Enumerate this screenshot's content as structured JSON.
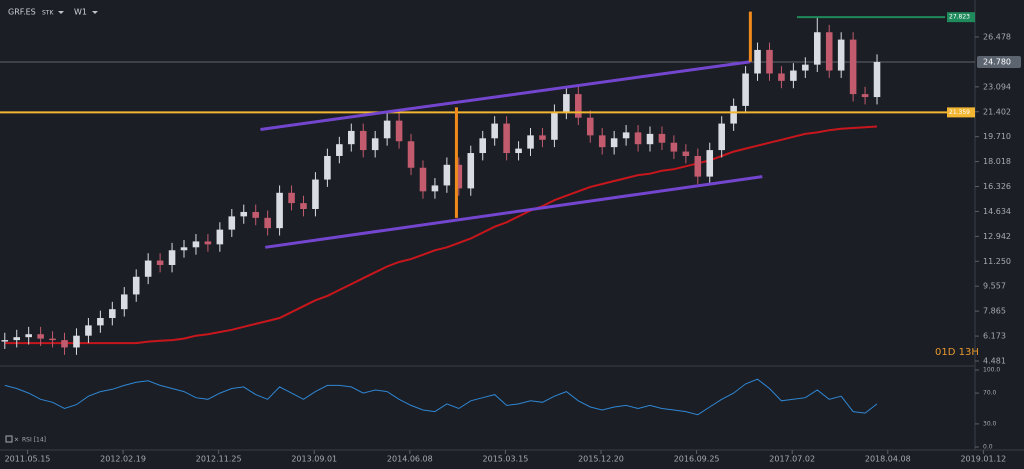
{
  "header": {
    "symbol": "GRF.ES",
    "exchange": "STK",
    "timeframe": "W1",
    "countdown": "01D 13H"
  },
  "chart_data": [
    {
      "type": "candlestick",
      "open": [
        5.8,
        5.9,
        6.1,
        6.3,
        6.0,
        5.9,
        5.4,
        6.2,
        6.9,
        7.4,
        8.0,
        9.0,
        10.2,
        11.3,
        11.0,
        12.0,
        12.2,
        12.6,
        12.4,
        13.4,
        14.3,
        14.6,
        14.2,
        13.5,
        15.9,
        15.2,
        14.8,
        16.8,
        18.4,
        19.2,
        20.1,
        18.8,
        19.6,
        20.8,
        19.4,
        17.6,
        16.0,
        16.4,
        17.8,
        16.2,
        18.6,
        19.6,
        20.6,
        18.6,
        18.9,
        19.8,
        19.5,
        21.4,
        22.6,
        21.0,
        19.8,
        19.0,
        19.6,
        20.0,
        19.2,
        19.9,
        19.3,
        18.7,
        18.4,
        17.0,
        18.8,
        20.6,
        21.8,
        24.0,
        25.6,
        24.0,
        23.5,
        24.2,
        24.6,
        26.8,
        24.2,
        26.3,
        22.6,
        22.4
      ],
      "high": [
        6.4,
        6.6,
        6.8,
        6.8,
        6.5,
        6.4,
        6.7,
        7.4,
        7.9,
        8.5,
        9.5,
        10.7,
        11.8,
        11.8,
        12.5,
        12.7,
        13.1,
        13.1,
        13.9,
        14.8,
        15.1,
        15.1,
        14.7,
        16.4,
        16.4,
        15.7,
        17.3,
        18.9,
        19.7,
        20.6,
        20.6,
        20.1,
        21.3,
        21.3,
        19.9,
        18.1,
        16.9,
        18.3,
        18.3,
        19.1,
        20.1,
        21.1,
        21.1,
        19.4,
        20.3,
        20.3,
        21.9,
        23.1,
        23.1,
        21.5,
        20.3,
        20.1,
        20.5,
        20.5,
        20.4,
        20.4,
        19.8,
        19.2,
        18.9,
        19.3,
        21.1,
        22.3,
        24.5,
        26.1,
        26.1,
        24.5,
        24.7,
        25.1,
        27.8,
        27.3,
        26.8,
        26.8,
        23.1,
        25.3
      ],
      "low": [
        5.3,
        5.4,
        5.6,
        5.5,
        5.4,
        4.9,
        4.9,
        5.7,
        6.4,
        6.9,
        7.5,
        8.5,
        9.7,
        10.5,
        10.5,
        11.5,
        11.7,
        11.9,
        11.9,
        12.9,
        13.8,
        13.7,
        13.0,
        13.0,
        14.7,
        14.3,
        14.3,
        16.3,
        17.9,
        18.7,
        18.3,
        18.3,
        19.1,
        18.9,
        17.1,
        15.5,
        15.5,
        15.9,
        15.7,
        15.7,
        18.1,
        19.1,
        18.1,
        18.1,
        18.4,
        19.0,
        19.0,
        20.9,
        20.5,
        19.3,
        18.5,
        18.5,
        19.1,
        18.7,
        18.7,
        18.8,
        18.2,
        17.9,
        16.5,
        16.5,
        18.3,
        20.1,
        21.3,
        23.5,
        23.5,
        23.0,
        23.0,
        23.7,
        24.1,
        23.7,
        23.7,
        22.1,
        21.9,
        21.9
      ],
      "close": [
        5.9,
        6.1,
        6.3,
        6.0,
        5.9,
        5.4,
        6.2,
        6.9,
        7.4,
        8.0,
        9.0,
        10.2,
        11.3,
        11.0,
        12.0,
        12.2,
        12.6,
        12.4,
        13.4,
        14.3,
        14.6,
        14.2,
        13.5,
        15.9,
        15.2,
        14.8,
        16.8,
        18.4,
        19.2,
        20.1,
        18.8,
        19.6,
        20.8,
        19.4,
        17.6,
        16.0,
        16.4,
        17.8,
        16.2,
        18.6,
        19.6,
        20.6,
        18.6,
        18.9,
        19.8,
        19.5,
        21.4,
        22.6,
        21.0,
        19.8,
        19.0,
        19.6,
        20.0,
        19.2,
        19.9,
        19.3,
        18.7,
        18.4,
        17.0,
        18.8,
        20.6,
        21.8,
        24.0,
        25.6,
        24.0,
        23.5,
        24.2,
        24.6,
        26.8,
        24.2,
        26.3,
        22.6,
        22.4,
        24.78
      ],
      "up_color": "#d9dde3",
      "down_color": "#c25b6e",
      "ma": {
        "color": "#c8161d",
        "values": [
          5.7,
          5.7,
          5.7,
          5.7,
          5.7,
          5.7,
          5.7,
          5.7,
          5.7,
          5.7,
          5.7,
          5.7,
          5.8,
          5.85,
          5.9,
          6.0,
          6.2,
          6.3,
          6.45,
          6.6,
          6.8,
          7.0,
          7.2,
          7.4,
          7.8,
          8.2,
          8.6,
          8.9,
          9.3,
          9.7,
          10.1,
          10.5,
          10.9,
          11.2,
          11.4,
          11.7,
          12.0,
          12.2,
          12.5,
          12.8,
          13.2,
          13.6,
          13.9,
          14.3,
          14.7,
          15.0,
          15.4,
          15.7,
          16.0,
          16.3,
          16.5,
          16.7,
          16.9,
          17.1,
          17.2,
          17.4,
          17.5,
          17.7,
          17.9,
          18.1,
          18.4,
          18.7,
          18.9,
          19.1,
          19.3,
          19.5,
          19.7,
          19.9,
          20.0,
          20.15,
          20.25,
          20.3,
          20.35,
          20.4
        ]
      },
      "xlim": [
        -0.4,
        81.2
      ],
      "xticks": [
        {
          "value": 1.9,
          "label": "2011.05.15"
        },
        {
          "value": 9.9,
          "label": "2012.02.19"
        },
        {
          "value": 17.9,
          "label": "2012.11.25"
        },
        {
          "value": 25.9,
          "label": "2013.09.01"
        },
        {
          "value": 33.9,
          "label": "2014.06.08"
        },
        {
          "value": 41.9,
          "label": "2015.03.15"
        },
        {
          "value": 49.9,
          "label": "2015.12.20"
        },
        {
          "value": 57.9,
          "label": "2016.09.25"
        },
        {
          "value": 65.9,
          "label": "2017.07.02"
        },
        {
          "value": 73.9,
          "label": "2018.04.08"
        },
        {
          "value": 81.9,
          "label": "2019.01.12"
        }
      ],
      "ylim": [
        4.21,
        28.31
      ],
      "yticks": [
        26.478,
        23.094,
        21.402,
        {
          "value": 19.71,
          "label": "19.710"
        },
        18.018,
        16.326,
        14.634,
        12.942,
        {
          "value": 11.25,
          "label": "11.250"
        },
        9.557,
        7.865,
        6.173,
        4.481
      ],
      "last_price": {
        "value": 24.78,
        "label": "24.780",
        "color": "#5c6470"
      },
      "levels": [
        {
          "y": {
            "value": 21.359,
            "label": "21.359"
          },
          "color": "#f2b632"
        },
        {
          "x": [
            66.3,
            78.7
          ],
          "y": {
            "value": 27.823,
            "label": "27.823"
          },
          "color": "#1f8a5c"
        }
      ],
      "trendlines": [
        {
          "x": [
            21.4,
            62.4
          ],
          "y": [
            20.2,
            24.8
          ],
          "color": "#7446d0"
        },
        {
          "x": [
            21.8,
            63.4
          ],
          "y": [
            12.2,
            17.0
          ],
          "color": "#7446d0"
        },
        {
          "x": [
            37.8,
            37.8
          ],
          "y": [
            21.7,
            14.2
          ],
          "color": "#f08a1c"
        },
        {
          "x": [
            62.4,
            62.4
          ],
          "y": [
            28.2,
            24.8
          ],
          "color": "#f08a1c"
        }
      ]
    },
    {
      "type": "line",
      "title": "RSI [14]",
      "color": "#2f86d4",
      "values": [
        80,
        76,
        70,
        62,
        58,
        50,
        55,
        66,
        72,
        75,
        80,
        84,
        86,
        80,
        76,
        72,
        64,
        62,
        70,
        76,
        78,
        68,
        62,
        78,
        70,
        62,
        72,
        80,
        80,
        78,
        70,
        74,
        72,
        62,
        54,
        48,
        46,
        56,
        50,
        60,
        64,
        68,
        54,
        56,
        60,
        58,
        66,
        72,
        60,
        52,
        48,
        52,
        54,
        50,
        54,
        50,
        48,
        46,
        42,
        52,
        62,
        70,
        82,
        88,
        76,
        60,
        62,
        64,
        74,
        62,
        66,
        46,
        44,
        56
      ],
      "ylim": [
        0,
        100
      ],
      "yticks": [
        {
          "value": 100,
          "label": "100.0"
        },
        {
          "value": 70,
          "label": "70.0"
        },
        {
          "value": 30,
          "label": "30.0"
        },
        {
          "value": 0,
          "label": "0.0"
        }
      ]
    }
  ]
}
